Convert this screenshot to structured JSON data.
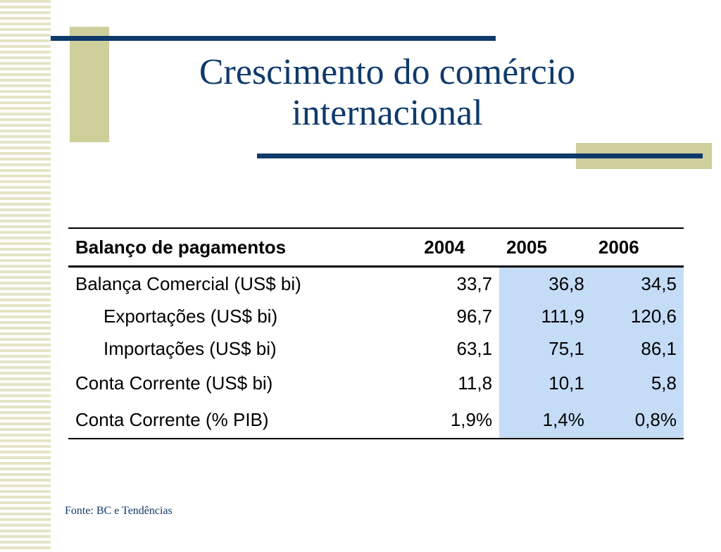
{
  "title": {
    "line1": "Crescimento do comércio",
    "line2": "internacional"
  },
  "table": {
    "headers": [
      "Balanço de pagamentos",
      "2004",
      "2005",
      "2006"
    ],
    "rows": [
      {
        "label": "Balança Comercial (US$ bi)",
        "v2004": "33,7",
        "v2005": "36,8",
        "v2006": "34,5"
      },
      {
        "label": "Exportações (US$ bi)",
        "v2004": "96,7",
        "v2005": "111,9",
        "v2006": "120,6"
      },
      {
        "label": "Importações (US$ bi)",
        "v2004": "63,1",
        "v2005": "75,1",
        "v2006": "86,1"
      },
      {
        "label": "Conta Corrente (US$ bi)",
        "v2004": "11,8",
        "v2005": "10,1",
        "v2006": "5,8"
      },
      {
        "label": "Conta Corrente (% PIB)",
        "v2004": "1,9%",
        "v2005": "1,4%",
        "v2006": "0,8%"
      }
    ]
  },
  "source": "Fonte: BC e Tendências",
  "colors": {
    "title": "#0f3a6b",
    "accent_block": "#cfcf9c",
    "highlight": "#c4dcf6"
  }
}
